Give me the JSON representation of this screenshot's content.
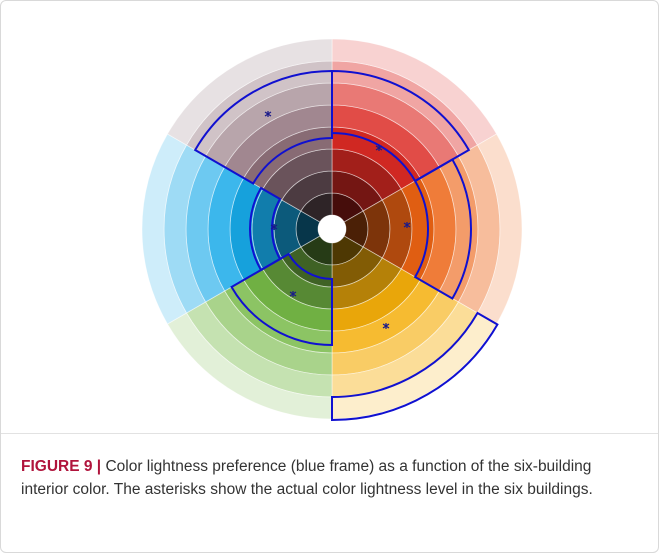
{
  "figure": {
    "label": "FIGURE 9 |",
    "caption": "Color lightness preference (blue frame) as a function of the six-building interior color. The asterisks show the actual color lightness level in the six buildings."
  }
}
